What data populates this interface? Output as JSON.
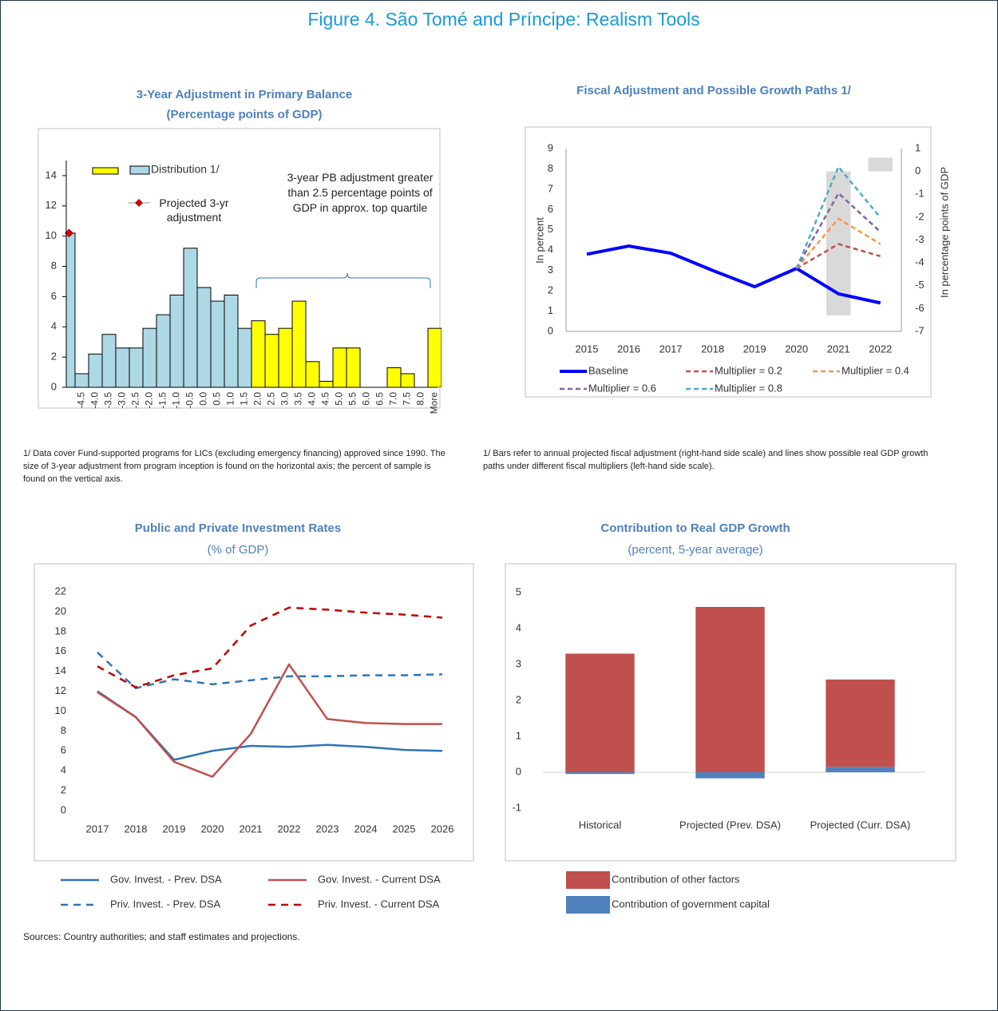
{
  "header": {
    "title": "Figure 4. São Tomé and Príncipe: Realism Tools"
  },
  "chart_data": [
    {
      "type": "bar",
      "title": "3-Year Adjustment in Primary Balance",
      "subtitle": "(Percentage points of GDP)",
      "categories": [
        null,
        "-4.5",
        "-4.0",
        "-3.5",
        "-3.0",
        "-2.5",
        "-2.0",
        "-1.5",
        "-1.0",
        "-0.5",
        "0.0",
        "0.5",
        "1.0",
        "1.5",
        "2.0",
        "2.5",
        "3.0",
        "3.5",
        "4.0",
        "4.5",
        "5.0",
        "5.5",
        "6.0",
        "6.5",
        "7.0",
        "7.5",
        "8.0",
        "More"
      ],
      "series": [
        {
          "name": "Distribution 1/",
          "color": "#add8e6",
          "values": [
            10.2,
            0.9,
            2.2,
            3.5,
            2.6,
            2.6,
            3.9,
            4.8,
            6.1,
            9.2,
            6.6,
            5.7,
            6.1,
            3.9,
            null,
            null,
            null,
            null,
            null,
            null,
            null,
            null,
            null,
            null,
            null,
            null,
            null,
            null
          ]
        },
        {
          "color": "#ffff00",
          "values": [
            null,
            null,
            null,
            null,
            null,
            null,
            null,
            null,
            null,
            null,
            null,
            null,
            null,
            null,
            4.4,
            3.5,
            3.9,
            5.7,
            1.7,
            0.4,
            2.6,
            2.6,
            0,
            0,
            1.3,
            0.9,
            0,
            3.9
          ]
        },
        {
          "type": "point",
          "name": "Projected 3-yr adjustment",
          "color": "#e00000",
          "values": [
            10.2,
            null,
            null,
            null,
            null,
            null,
            null,
            null,
            null,
            null,
            null,
            null,
            null,
            null,
            null,
            null,
            null,
            null,
            null,
            null,
            null,
            null,
            null,
            null,
            null,
            null,
            null,
            null
          ]
        }
      ],
      "ylim": [
        0,
        15
      ],
      "yticks": [
        0,
        2,
        4,
        6,
        8,
        10,
        12,
        14
      ],
      "annotation": "3-year PB adjustment greater than 2.5 percentage points of GDP in approx. top quartile",
      "footnote": "1/ Data cover Fund-supported programs for LICs (excluding emergency financing) approved since 1990. The size of 3-year adjustment from program inception is found on the horizontal axis; the percent of sample is found on the vertical axis."
    },
    {
      "type": "line",
      "title": "Fiscal Adjustment and Possible Growth Paths 1/",
      "categories": [
        "2015",
        "2016",
        "2017",
        "2018",
        "2019",
        "2020",
        "2021",
        "2022"
      ],
      "ylabel": "In percent",
      "y2label": "In percentage points of GDP",
      "ylim": [
        0,
        9
      ],
      "yticks": [
        0,
        1,
        2,
        3,
        4,
        5,
        6,
        7,
        8,
        9
      ],
      "y2lim": [
        -7,
        1
      ],
      "y2ticks": [
        -7,
        -6,
        -5,
        -4,
        -3,
        -2,
        -1,
        0,
        1
      ],
      "series": [
        {
          "type": "bar",
          "axis": "y2",
          "color": "#d9d9d9",
          "values": [
            null,
            null,
            null,
            null,
            null,
            null,
            -6.3,
            0.6
          ]
        },
        {
          "name": "Baseline",
          "color": "#0000ff",
          "values": [
            3.8,
            4.2,
            3.85,
            3.0,
            2.2,
            3.1,
            1.85,
            1.4
          ]
        },
        {
          "name": "Multiplier = 0.2",
          "color": "#c0504d",
          "dash": true,
          "values": [
            null,
            null,
            null,
            null,
            null,
            3.1,
            4.3,
            3.7
          ]
        },
        {
          "name": "Multiplier = 0.4",
          "color": "#f79646",
          "dash": true,
          "values": [
            null,
            null,
            null,
            null,
            null,
            3.1,
            5.55,
            4.3
          ]
        },
        {
          "name": "Multiplier = 0.6",
          "color": "#8064a2",
          "dash": true,
          "values": [
            null,
            null,
            null,
            null,
            null,
            3.1,
            6.8,
            4.9
          ]
        },
        {
          "name": "Multiplier = 0.8",
          "color": "#4bacc6",
          "dash": true,
          "values": [
            null,
            null,
            null,
            null,
            null,
            3.1,
            8.1,
            5.6
          ]
        }
      ],
      "footnote": "1/ Bars refer to annual projected fiscal adjustment (right-hand side scale) and lines show possible real GDP growth paths under different fiscal multipliers (left-hand side scale)."
    },
    {
      "type": "line",
      "title": "Public and Private Investment Rates",
      "subtitle": "(% of GDP)",
      "categories": [
        "2017",
        "2018",
        "2019",
        "2020",
        "2021",
        "2022",
        "2023",
        "2024",
        "2025",
        "2026"
      ],
      "ylim": [
        0,
        22
      ],
      "yticks": [
        0,
        2,
        4,
        6,
        8,
        10,
        12,
        14,
        16,
        18,
        20,
        22
      ],
      "series": [
        {
          "name": "Gov. Invest. - Prev. DSA",
          "color": "#2e75b6",
          "values": [
            12.0,
            9.4,
            5.1,
            6.0,
            6.5,
            6.4,
            6.6,
            6.4,
            6.1,
            6.0
          ]
        },
        {
          "name": "Gov. Invest. - Current DSA",
          "color": "#c0504d",
          "values": [
            11.9,
            9.4,
            4.9,
            3.4,
            7.7,
            14.7,
            9.2,
            8.8,
            8.7,
            8.7
          ]
        },
        {
          "name": "Priv. Invest. - Prev. DSA",
          "color": "#2e75b6",
          "dash": true,
          "values": [
            15.9,
            12.3,
            13.2,
            12.7,
            13.1,
            13.5,
            13.5,
            13.6,
            13.6,
            13.7
          ]
        },
        {
          "name": "Priv. Invest. - Current DSA",
          "color": "#c00000",
          "dash": true,
          "values": [
            14.5,
            12.4,
            13.6,
            14.3,
            18.6,
            20.4,
            20.2,
            19.9,
            19.7,
            19.4
          ]
        }
      ]
    },
    {
      "type": "stacked_bar",
      "title": "Contribution to Real GDP Growth",
      "subtitle": "(percent, 5-year average)",
      "categories": [
        "Historical",
        "Projected (Prev. DSA)",
        "Projected (Curr. DSA)"
      ],
      "ylim": [
        -1,
        5
      ],
      "yticks": [
        -1,
        0,
        1,
        2,
        3,
        4,
        5
      ],
      "series": [
        {
          "name": "Contribution of other factors",
          "color": "#c0504d",
          "values": [
            3.3,
            4.6,
            2.43
          ]
        },
        {
          "name": "Contribution of government capital",
          "color": "#4f81bd",
          "values": [
            -0.05,
            -0.17,
            0.15
          ]
        }
      ]
    }
  ],
  "sources": "Sources: Country authorities; and staff estimates and projections."
}
